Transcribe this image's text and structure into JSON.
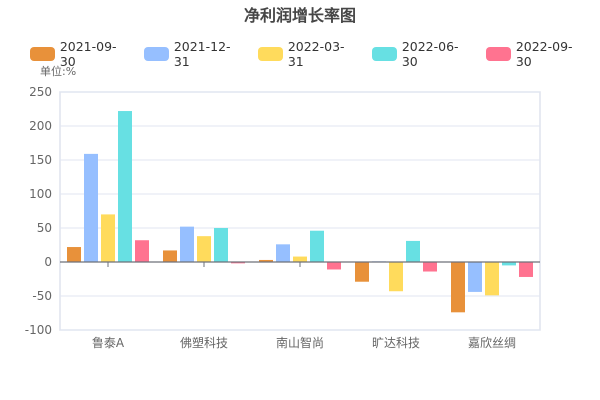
{
  "chart_data": {
    "type": "bar",
    "title": "净利润增长率图",
    "ylabel": "单位:%",
    "ylim": [
      -100,
      250
    ],
    "yticks": [
      -100,
      -50,
      0,
      50,
      100,
      150,
      200,
      250
    ],
    "categories": [
      "鲁泰A",
      "佛塑科技",
      "南山智尚",
      "旷达科技",
      "嘉欣丝绸"
    ],
    "legend_position": "top",
    "series": [
      {
        "name": "2021-09-30",
        "color": "#E8913A",
        "values": [
          22,
          17,
          3,
          -29,
          -74
        ]
      },
      {
        "name": "2021-12-31",
        "color": "#96BFFF",
        "values": [
          159,
          52,
          26,
          1,
          -44
        ]
      },
      {
        "name": "2022-03-31",
        "color": "#FFDB5C",
        "values": [
          70,
          38,
          8,
          -43,
          -49
        ]
      },
      {
        "name": "2022-06-30",
        "color": "#67E0E3",
        "values": [
          222,
          50,
          46,
          31,
          -5
        ]
      },
      {
        "name": "2022-09-30",
        "color": "#FF7390",
        "values": [
          32,
          -2,
          -11,
          -14,
          -22
        ]
      }
    ]
  }
}
